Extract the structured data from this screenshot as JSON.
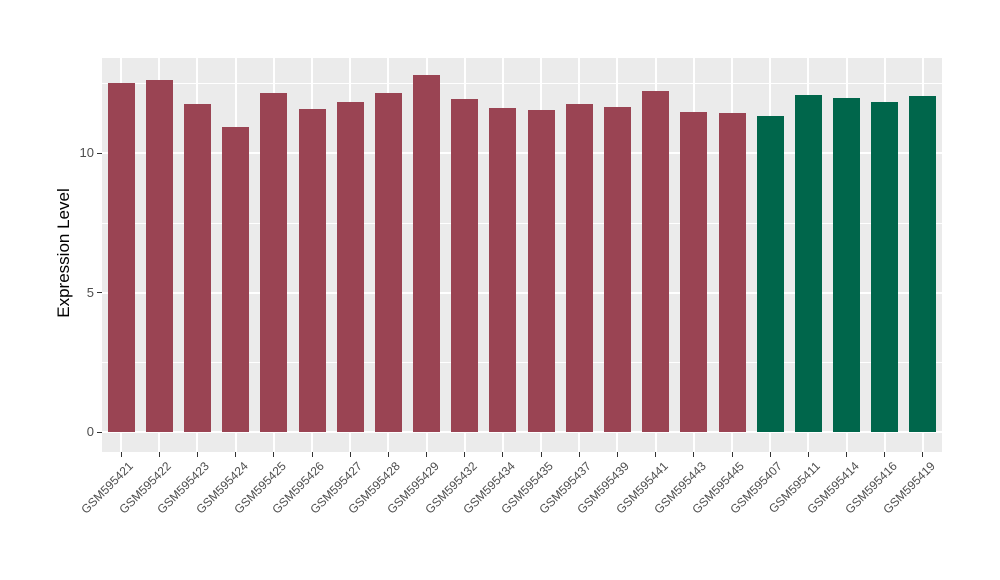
{
  "chart_data": {
    "type": "bar",
    "title": "",
    "xlabel": "",
    "ylabel": "Expression Level",
    "categories": [
      "GSM595421",
      "GSM595422",
      "GSM595423",
      "GSM595424",
      "GSM595425",
      "GSM595426",
      "GSM595427",
      "GSM595428",
      "GSM595429",
      "GSM595432",
      "GSM595434",
      "GSM595435",
      "GSM595437",
      "GSM595439",
      "GSM595441",
      "GSM595443",
      "GSM595445",
      "GSM595407",
      "GSM595411",
      "GSM595414",
      "GSM595416",
      "GSM595419"
    ],
    "values": [
      12.52,
      12.63,
      11.74,
      10.92,
      12.14,
      11.57,
      11.82,
      12.16,
      12.81,
      11.92,
      11.62,
      11.53,
      11.76,
      11.64,
      12.22,
      11.47,
      11.45,
      11.34,
      12.09,
      11.98,
      11.82,
      12.03
    ],
    "bar_groups": [
      "group1",
      "group1",
      "group1",
      "group1",
      "group1",
      "group1",
      "group1",
      "group1",
      "group1",
      "group1",
      "group1",
      "group1",
      "group1",
      "group1",
      "group1",
      "group1",
      "group1",
      "group2",
      "group2",
      "group2",
      "group2",
      "group2"
    ],
    "group_colors": {
      "group1": "#9A4453",
      "group2": "#00664B"
    },
    "ylim": [
      0,
      13.4
    ],
    "yticks": [
      0,
      5,
      10
    ],
    "yticks_minor": [
      2.5,
      7.5,
      12.5
    ],
    "grid": true,
    "legend": "none",
    "panel_background": "#EBEBEB",
    "grid_color": "#FFFFFF",
    "axis_text_color": "#4D4D4D",
    "tick_mark_color": "#333333"
  }
}
